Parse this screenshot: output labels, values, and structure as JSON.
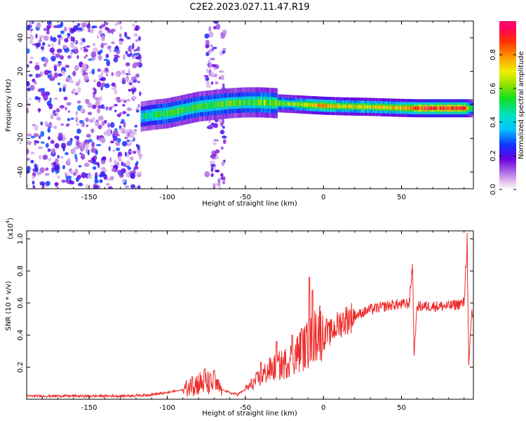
{
  "title": "C2E2.2023.027.11.47.R19",
  "colors": {
    "snr_line": "#ee2a2a",
    "axis": "#000000",
    "background": "#ffffff"
  },
  "chart_data": [
    {
      "type": "heatmap",
      "title": "C2E2.2023.027.11.47.R19",
      "xlabel": "Height of straight line (km)",
      "ylabel": "Frequency (Hz)",
      "xlim": [
        -190,
        96
      ],
      "ylim": [
        -50,
        50
      ],
      "x_ticks": [
        -150,
        -100,
        -50,
        0,
        50
      ],
      "x_tick_labels": [
        "-150",
        "-100",
        "-50",
        "0",
        "50"
      ],
      "y_ticks": [
        -40,
        -20,
        0,
        20,
        40
      ],
      "y_tick_labels": [
        "-40",
        "-20",
        "0",
        "20",
        "40"
      ],
      "grid": false,
      "colorbar": {
        "label": "Normalized spectral amplitude",
        "range": [
          0.0,
          1.0
        ],
        "ticks": [
          0.0,
          0.2,
          0.4,
          0.6,
          0.8
        ],
        "tick_labels": [
          "0.0",
          "0.2",
          "0.4",
          "0.6",
          "0.8"
        ],
        "colormap": "rainbow (violet-blue-cyan-green-yellow-orange-red)"
      },
      "regions": [
        {
          "x_range": [
            -190,
            -117
          ],
          "y_range": [
            -50,
            50
          ],
          "pattern": "scattered noise",
          "amplitude": [
            0.05,
            0.3
          ]
        },
        {
          "x_range": [
            -75,
            -63
          ],
          "y_range": [
            -50,
            50
          ],
          "pattern": "scattered noise column",
          "amplitude": [
            0.05,
            0.25
          ]
        }
      ],
      "ridge": {
        "x": [
          -117,
          -110,
          -100,
          -90,
          -80,
          -70,
          -60,
          -50,
          -40,
          -30,
          -20,
          -10,
          0,
          10,
          20,
          30,
          40,
          50,
          60,
          70,
          80,
          90,
          96
        ],
        "center_hz": [
          -7,
          -6,
          -5,
          -3,
          -1,
          0,
          1,
          1.5,
          1.5,
          1,
          0.5,
          0,
          -0.5,
          -0.8,
          -1,
          -1.2,
          -1.5,
          -1.8,
          -2,
          -2,
          -2,
          -2,
          -2
        ],
        "peak_amplitude": [
          0.45,
          0.5,
          0.55,
          0.55,
          0.55,
          0.55,
          0.55,
          0.55,
          0.6,
          0.6,
          0.6,
          0.7,
          0.8,
          0.7,
          0.7,
          0.7,
          0.7,
          0.75,
          0.85,
          0.9,
          0.9,
          0.9,
          0.4
        ]
      }
    },
    {
      "type": "line",
      "xlabel": "Height of straight line (km)",
      "ylabel": "SNR (10 * v/v)",
      "y_multiplier_label": "(x10",
      "y_multiplier_exponent": "4",
      "xlim": [
        -190,
        96
      ],
      "ylim": [
        0,
        1.05
      ],
      "x_ticks": [
        -150,
        -100,
        -50,
        0,
        50
      ],
      "x_tick_labels": [
        "-150",
        "-100",
        "-50",
        "0",
        "50"
      ],
      "y_ticks": [
        0.2,
        0.4,
        0.6,
        0.8,
        1.0
      ],
      "y_tick_labels": [
        "0.2",
        "0.4",
        "0.6",
        "0.8",
        "1.0"
      ],
      "grid": false,
      "series": [
        {
          "x": [
            -190,
            -170,
            -150,
            -130,
            -115,
            -110,
            -100,
            -95,
            -90,
            -85,
            -80,
            -75,
            -70,
            -65,
            -60,
            -55,
            -50,
            -45,
            -40,
            -35,
            -30,
            -25,
            -20,
            -15,
            -10,
            -5,
            -3,
            0,
            5,
            10,
            15,
            20,
            25,
            30,
            35,
            40,
            45,
            50,
            55,
            57,
            58,
            60,
            65,
            70,
            75,
            80,
            85,
            90,
            92,
            93,
            95,
            96
          ],
          "values": [
            0.02,
            0.02,
            0.02,
            0.02,
            0.025,
            0.03,
            0.04,
            0.05,
            0.06,
            0.08,
            0.1,
            0.1,
            0.09,
            0.06,
            0.04,
            0.03,
            0.06,
            0.1,
            0.14,
            0.18,
            0.2,
            0.22,
            0.26,
            0.3,
            0.34,
            0.4,
            0.45,
            0.38,
            0.42,
            0.47,
            0.5,
            0.52,
            0.54,
            0.56,
            0.57,
            0.58,
            0.59,
            0.59,
            0.6,
            0.85,
            0.28,
            0.58,
            0.58,
            0.58,
            0.58,
            0.58,
            0.59,
            0.6,
            1.0,
            0.2,
            0.55,
            0.5
          ],
          "spikes": [
            {
              "x": -84,
              "value": 0.14
            },
            {
              "x": -76,
              "value": 0.19
            },
            {
              "x": -70,
              "value": 0.18
            },
            {
              "x": -40,
              "value": 0.23
            },
            {
              "x": -30,
              "value": 0.36
            },
            {
              "x": -20,
              "value": 0.4
            },
            {
              "x": -14,
              "value": 0.44
            },
            {
              "x": -9,
              "value": 0.76
            },
            {
              "x": -7,
              "value": 0.68
            },
            {
              "x": 2,
              "value": 0.5
            }
          ]
        }
      ]
    }
  ]
}
